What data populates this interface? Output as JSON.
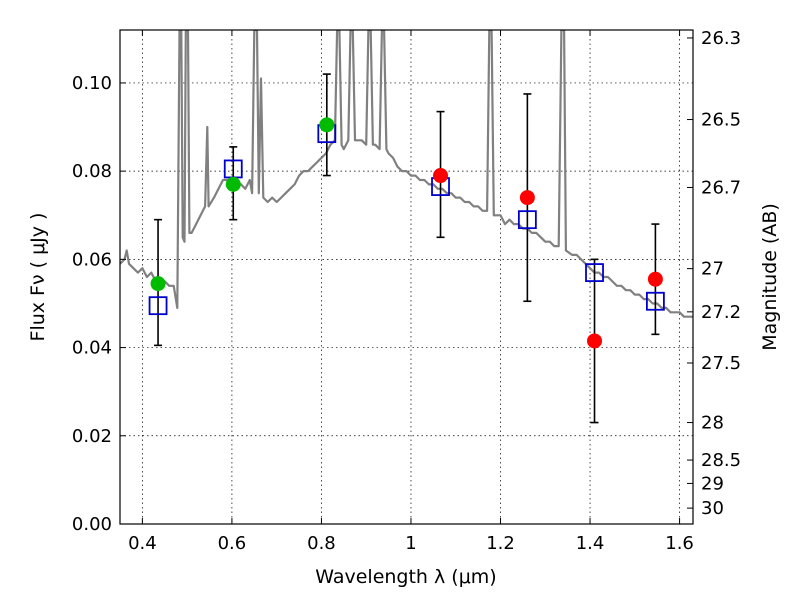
{
  "chart_data": {
    "type": "scatter",
    "xlabel": "Wavelength  λ (μm)",
    "ylabel": "Flux  Fν  ( μJy )",
    "y2label": "Magnitude (AB)",
    "xlim": [
      0.35,
      1.63
    ],
    "ylim": [
      0.0,
      0.112
    ],
    "grid": true,
    "x_ticks": [
      0.4,
      0.6,
      0.8,
      1.0,
      1.2,
      1.4,
      1.6
    ],
    "x_tick_labels": [
      "0.4",
      "0.6",
      "0.8",
      "1",
      "1.2",
      "1.4",
      "1.6"
    ],
    "y_ticks": [
      0.0,
      0.02,
      0.04,
      0.06,
      0.08,
      0.1
    ],
    "y_tick_labels": [
      "0.00",
      "0.02",
      "0.04",
      "0.06",
      "0.08",
      "0.10"
    ],
    "y2_ticks": [
      {
        "label": "26.3",
        "flux": 0.1102
      },
      {
        "label": "26.5",
        "flux": 0.0917
      },
      {
        "label": "26.7",
        "flux": 0.0763
      },
      {
        "label": "27",
        "flux": 0.0579
      },
      {
        "label": "27.2",
        "flux": 0.0481
      },
      {
        "label": "27.5",
        "flux": 0.0365
      },
      {
        "label": "28",
        "flux": 0.023
      },
      {
        "label": "28.5",
        "flux": 0.0145
      },
      {
        "label": "29",
        "flux": 0.0092
      },
      {
        "label": "30",
        "flux": 0.0036
      }
    ],
    "series": [
      {
        "name": "model spectrum",
        "kind": "line",
        "color": "#808080",
        "points": [
          [
            0.35,
            0.059
          ],
          [
            0.36,
            0.06
          ],
          [
            0.365,
            0.062
          ],
          [
            0.37,
            0.059
          ],
          [
            0.38,
            0.058
          ],
          [
            0.39,
            0.057
          ],
          [
            0.4,
            0.058
          ],
          [
            0.41,
            0.056
          ],
          [
            0.42,
            0.057
          ],
          [
            0.43,
            0.055
          ],
          [
            0.44,
            0.054
          ],
          [
            0.45,
            0.055
          ],
          [
            0.46,
            0.054
          ],
          [
            0.47,
            0.054
          ],
          [
            0.478,
            0.049
          ],
          [
            0.483,
            0.112
          ],
          [
            0.487,
            0.112
          ],
          [
            0.49,
            0.065
          ],
          [
            0.494,
            0.064
          ],
          [
            0.497,
            0.112
          ],
          [
            0.502,
            0.112
          ],
          [
            0.505,
            0.066
          ],
          [
            0.51,
            0.066
          ],
          [
            0.52,
            0.068
          ],
          [
            0.53,
            0.07
          ],
          [
            0.54,
            0.072
          ],
          [
            0.545,
            0.09
          ],
          [
            0.548,
            0.072
          ],
          [
            0.56,
            0.074
          ],
          [
            0.57,
            0.076
          ],
          [
            0.58,
            0.078
          ],
          [
            0.59,
            0.078
          ],
          [
            0.6,
            0.078
          ],
          [
            0.61,
            0.078
          ],
          [
            0.62,
            0.077
          ],
          [
            0.63,
            0.076
          ],
          [
            0.64,
            0.078
          ],
          [
            0.645,
            0.075
          ],
          [
            0.65,
            0.112
          ],
          [
            0.656,
            0.112
          ],
          [
            0.66,
            0.075
          ],
          [
            0.665,
            0.101
          ],
          [
            0.67,
            0.074
          ],
          [
            0.68,
            0.073
          ],
          [
            0.69,
            0.074
          ],
          [
            0.7,
            0.073
          ],
          [
            0.71,
            0.074
          ],
          [
            0.72,
            0.075
          ],
          [
            0.73,
            0.076
          ],
          [
            0.74,
            0.077
          ],
          [
            0.75,
            0.079
          ],
          [
            0.76,
            0.08
          ],
          [
            0.77,
            0.08
          ],
          [
            0.78,
            0.081
          ],
          [
            0.79,
            0.082
          ],
          [
            0.8,
            0.083
          ],
          [
            0.81,
            0.084
          ],
          [
            0.82,
            0.086
          ],
          [
            0.83,
            0.087
          ],
          [
            0.835,
            0.112
          ],
          [
            0.84,
            0.112
          ],
          [
            0.845,
            0.086
          ],
          [
            0.85,
            0.085
          ],
          [
            0.86,
            0.087
          ],
          [
            0.865,
            0.112
          ],
          [
            0.87,
            0.112
          ],
          [
            0.875,
            0.087
          ],
          [
            0.88,
            0.087
          ],
          [
            0.89,
            0.087
          ],
          [
            0.9,
            0.086
          ],
          [
            0.905,
            0.112
          ],
          [
            0.91,
            0.112
          ],
          [
            0.915,
            0.086
          ],
          [
            0.92,
            0.086
          ],
          [
            0.93,
            0.085
          ],
          [
            0.935,
            0.112
          ],
          [
            0.94,
            0.112
          ],
          [
            0.945,
            0.085
          ],
          [
            0.95,
            0.084
          ],
          [
            0.96,
            0.083
          ],
          [
            0.97,
            0.081
          ],
          [
            0.98,
            0.08
          ],
          [
            0.99,
            0.08
          ],
          [
            1.0,
            0.079
          ],
          [
            1.01,
            0.079
          ],
          [
            1.02,
            0.078
          ],
          [
            1.03,
            0.078
          ],
          [
            1.04,
            0.077
          ],
          [
            1.05,
            0.077
          ],
          [
            1.06,
            0.076
          ],
          [
            1.07,
            0.076
          ],
          [
            1.08,
            0.075
          ],
          [
            1.09,
            0.075
          ],
          [
            1.1,
            0.074
          ],
          [
            1.11,
            0.074
          ],
          [
            1.12,
            0.073
          ],
          [
            1.13,
            0.073
          ],
          [
            1.14,
            0.072
          ],
          [
            1.15,
            0.072
          ],
          [
            1.16,
            0.071
          ],
          [
            1.17,
            0.071
          ],
          [
            1.175,
            0.112
          ],
          [
            1.18,
            0.112
          ],
          [
            1.185,
            0.07
          ],
          [
            1.2,
            0.07
          ],
          [
            1.21,
            0.068
          ],
          [
            1.22,
            0.069
          ],
          [
            1.23,
            0.068
          ],
          [
            1.24,
            0.068
          ],
          [
            1.25,
            0.067
          ],
          [
            1.26,
            0.067
          ],
          [
            1.27,
            0.066
          ],
          [
            1.28,
            0.066
          ],
          [
            1.29,
            0.065
          ],
          [
            1.3,
            0.064
          ],
          [
            1.31,
            0.064
          ],
          [
            1.32,
            0.063
          ],
          [
            1.33,
            0.063
          ],
          [
            1.336,
            0.112
          ],
          [
            1.342,
            0.112
          ],
          [
            1.346,
            0.062
          ],
          [
            1.36,
            0.061
          ],
          [
            1.37,
            0.061
          ],
          [
            1.38,
            0.06
          ],
          [
            1.39,
            0.059
          ],
          [
            1.4,
            0.058
          ],
          [
            1.41,
            0.057
          ],
          [
            1.42,
            0.057
          ],
          [
            1.43,
            0.056
          ],
          [
            1.44,
            0.056
          ],
          [
            1.45,
            0.055
          ],
          [
            1.46,
            0.054
          ],
          [
            1.47,
            0.054
          ],
          [
            1.48,
            0.053
          ],
          [
            1.49,
            0.053
          ],
          [
            1.5,
            0.052
          ],
          [
            1.51,
            0.052
          ],
          [
            1.52,
            0.051
          ],
          [
            1.53,
            0.051
          ],
          [
            1.54,
            0.05
          ],
          [
            1.55,
            0.05
          ],
          [
            1.56,
            0.049
          ],
          [
            1.57,
            0.049
          ],
          [
            1.58,
            0.048
          ],
          [
            1.59,
            0.048
          ],
          [
            1.6,
            0.048
          ],
          [
            1.61,
            0.047
          ],
          [
            1.62,
            0.047
          ],
          [
            1.63,
            0.047
          ]
        ]
      },
      {
        "name": "model fluxes",
        "kind": "square",
        "color": "#0000cc",
        "points": [
          [
            0.435,
            0.0495
          ],
          [
            0.603,
            0.0805
          ],
          [
            0.812,
            0.0885
          ],
          [
            1.066,
            0.0765
          ],
          [
            1.26,
            0.069
          ],
          [
            1.41,
            0.057
          ],
          [
            1.546,
            0.0505
          ]
        ]
      },
      {
        "name": "observed (green)",
        "kind": "circle",
        "color": "#00bb00",
        "points": [
          [
            0.435,
            0.0545
          ],
          [
            0.603,
            0.077
          ],
          [
            0.812,
            0.0905
          ]
        ]
      },
      {
        "name": "observed (red)",
        "kind": "circle",
        "color": "#ff0000",
        "points": [
          [
            1.066,
            0.079
          ],
          [
            1.26,
            0.074
          ],
          [
            1.41,
            0.0415
          ],
          [
            1.546,
            0.0555
          ]
        ]
      },
      {
        "name": "error bars",
        "kind": "errorbar",
        "color": "#000000",
        "points": [
          [
            0.435,
            0.0405,
            0.069
          ],
          [
            0.603,
            0.069,
            0.0855
          ],
          [
            0.812,
            0.079,
            0.102
          ],
          [
            1.066,
            0.065,
            0.0935
          ],
          [
            1.26,
            0.0505,
            0.0975
          ],
          [
            1.41,
            0.023,
            0.06
          ],
          [
            1.546,
            0.043,
            0.068
          ]
        ]
      }
    ]
  }
}
